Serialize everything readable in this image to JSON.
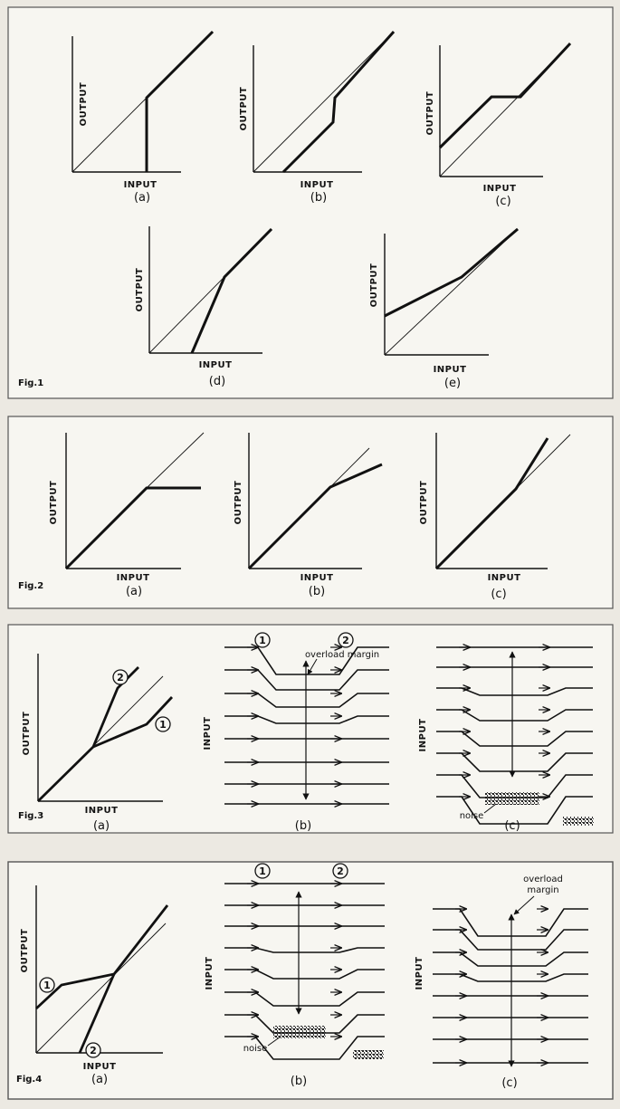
{
  "labels": {
    "output": "OUTPUT",
    "input": "INPUT",
    "overload_margin": "overload margin",
    "overload": "overload",
    "margin": "margin",
    "noise": "noise",
    "one": "1",
    "two": "2"
  },
  "figures": {
    "fig1": {
      "title": "Fig.1",
      "panels": [
        {
          "caption": "(a)"
        },
        {
          "caption": "(b)"
        },
        {
          "caption": "(c)"
        },
        {
          "caption": "(d)"
        },
        {
          "caption": "(e)"
        }
      ]
    },
    "fig2": {
      "title": "Fig.2",
      "panels": [
        {
          "caption": "(a)"
        },
        {
          "caption": "(b)"
        },
        {
          "caption": "(c)"
        }
      ]
    },
    "fig3": {
      "title": "Fig.3",
      "panels": [
        {
          "caption": "(a)"
        },
        {
          "caption": "(b)"
        },
        {
          "caption": "(c)"
        }
      ]
    },
    "fig4": {
      "title": "Fig.4",
      "panels": [
        {
          "caption": "(a)"
        },
        {
          "caption": "(b)"
        },
        {
          "caption": "(c)"
        }
      ]
    }
  },
  "colors": {
    "paper": "#f7f6f1",
    "ink": "#111111",
    "frame": "#555555"
  }
}
